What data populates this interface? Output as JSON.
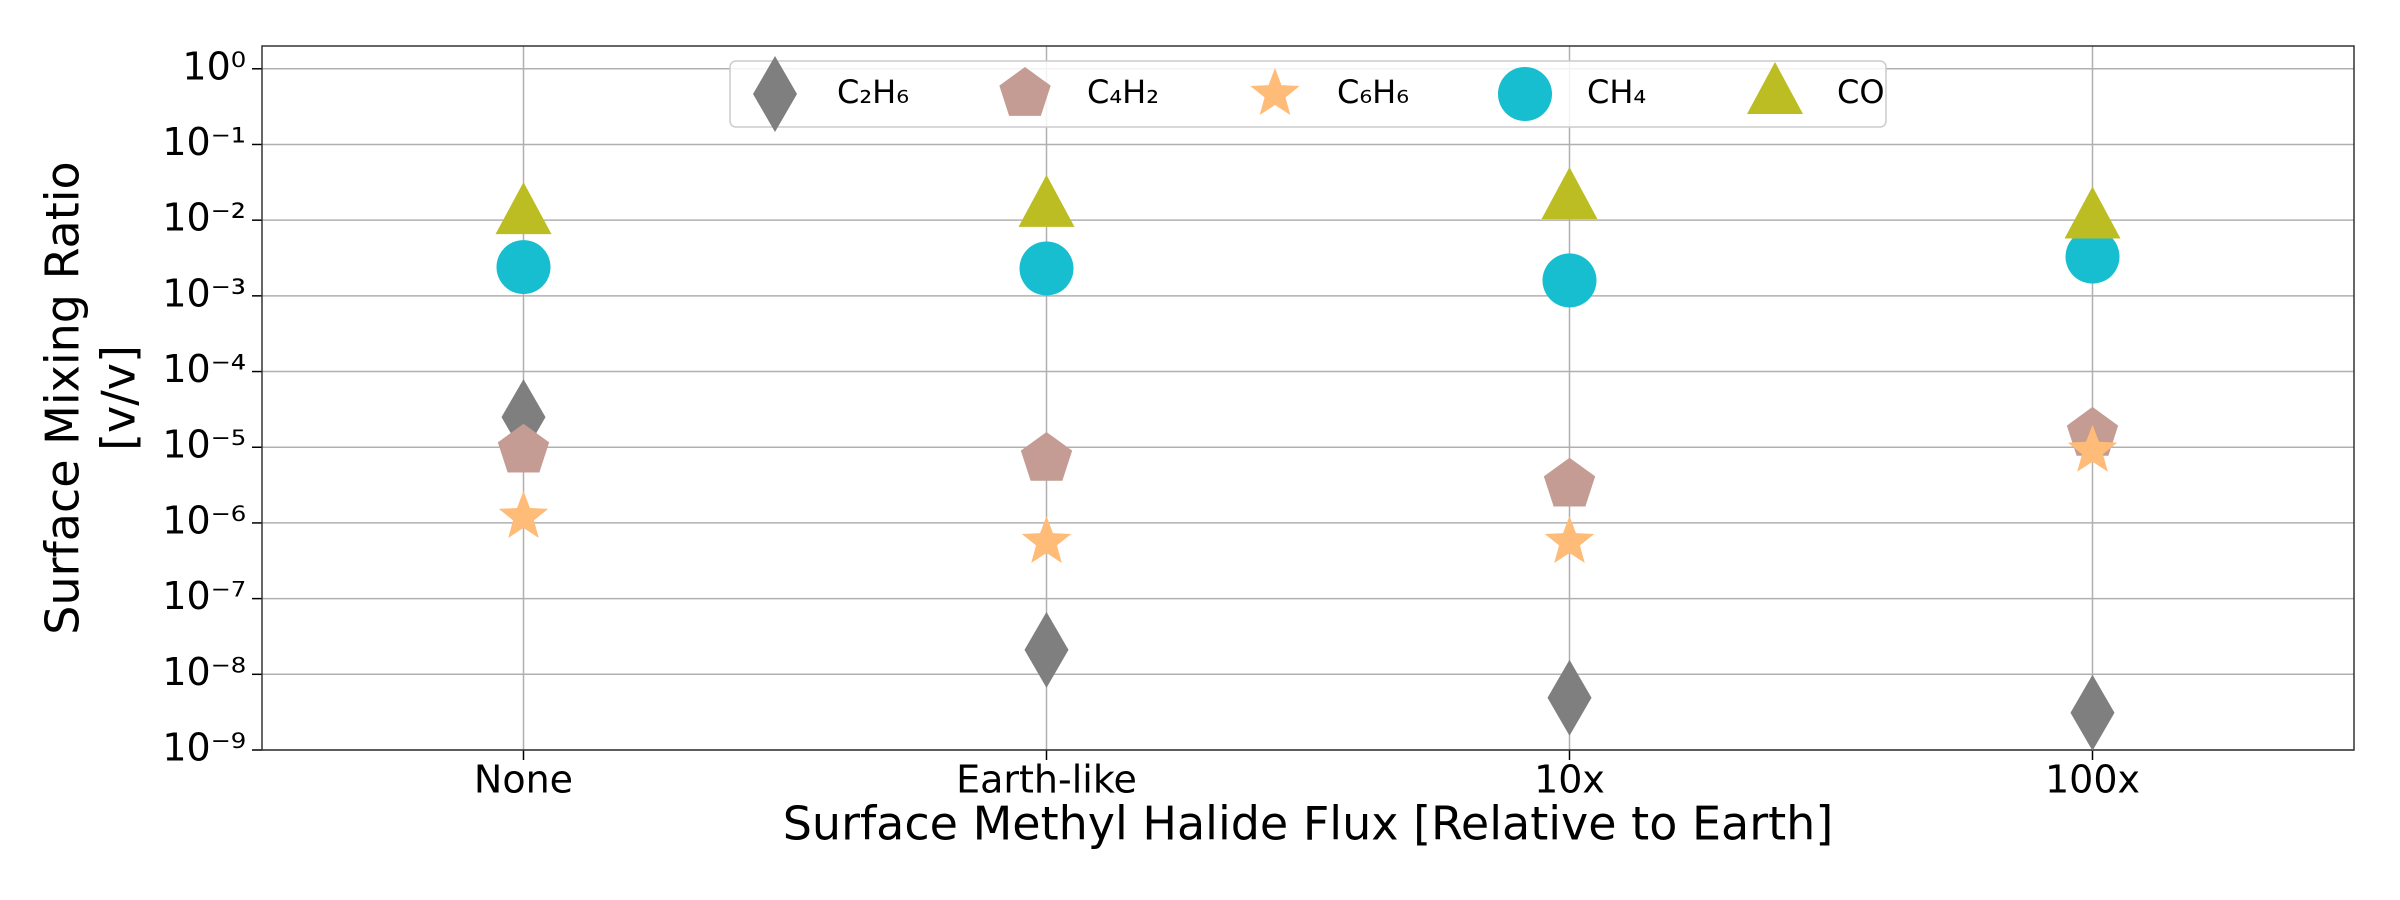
{
  "chart_data": {
    "type": "scatter",
    "xlabel": "Surface Methyl Halide Flux [Relative to Earth]",
    "ylabel": [
      "Surface Mixing Ratio",
      "[v/v]"
    ],
    "categories": [
      "None",
      "Earth-like",
      "10x",
      "100x"
    ],
    "yscale": "log",
    "ylim": [
      1e-09,
      2
    ],
    "yticks": [
      {
        "value": 1e-09,
        "label": "10⁻⁹"
      },
      {
        "value": 1e-08,
        "label": "10⁻⁸"
      },
      {
        "value": 1e-07,
        "label": "10⁻⁷"
      },
      {
        "value": 1e-06,
        "label": "10⁻⁶"
      },
      {
        "value": 1e-05,
        "label": "10⁻⁵"
      },
      {
        "value": 0.0001,
        "label": "10⁻⁴"
      },
      {
        "value": 0.001,
        "label": "10⁻³"
      },
      {
        "value": 0.01,
        "label": "10⁻²"
      },
      {
        "value": 0.1,
        "label": "10⁻¹"
      },
      {
        "value": 1,
        "label": "10⁰"
      }
    ],
    "grid": true,
    "legend": "upper center",
    "series": [
      {
        "name": "C₂H₆",
        "color": "#7f7f7f",
        "marker": "diamond",
        "values": [
          2.5e-05,
          2.1e-08,
          4.9e-09,
          3.1e-09
        ]
      },
      {
        "name": "C₄H₂",
        "color": "#c49c94",
        "marker": "pentagon",
        "values": [
          9e-06,
          7e-06,
          3.2e-06,
          1.5e-05
        ]
      },
      {
        "name": "C₆H₆",
        "color": "#ffbb78",
        "marker": "star",
        "values": [
          1.2e-06,
          5.6e-07,
          5.6e-07,
          9e-06
        ]
      },
      {
        "name": "CH₄",
        "color": "#17becf",
        "marker": "circle",
        "values": [
          0.0024,
          0.0023,
          0.0016,
          0.0033
        ]
      },
      {
        "name": "CO",
        "color": "#bcbd22",
        "marker": "triangle",
        "values": [
          0.012,
          0.015,
          0.019,
          0.0105
        ]
      }
    ]
  }
}
